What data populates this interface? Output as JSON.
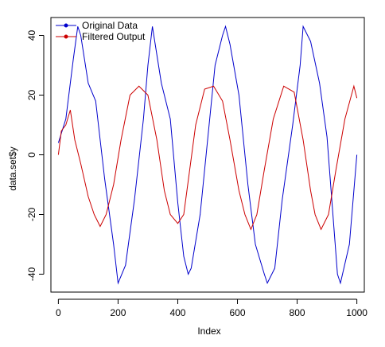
{
  "chart_data": {
    "type": "line",
    "title": "",
    "xlabel": "Index",
    "ylabel": "data.set$y",
    "xlim": [
      -25,
      1025
    ],
    "ylim": [
      -46,
      46
    ],
    "xticks": [
      0,
      200,
      400,
      600,
      800,
      1000
    ],
    "yticks": [
      -40,
      -20,
      0,
      20,
      40
    ],
    "xtick_labels": [
      "0",
      "200",
      "400",
      "600",
      "800",
      "1000"
    ],
    "ytick_labels": [
      "-40",
      "-20",
      "0",
      "20",
      "40"
    ],
    "grid": false,
    "legend_position": "top-left",
    "n_points": 1001,
    "series": [
      {
        "name": "Original Data",
        "color": "#0000CC",
        "marker": "filled-circle",
        "x_points": [
          0,
          25,
          50,
          65,
          75,
          100,
          125,
          155,
          185,
          200,
          225,
          255,
          285,
          300,
          315,
          345,
          375,
          400,
          420,
          435,
          445,
          475,
          505,
          525,
          550,
          560,
          575,
          605,
          635,
          660,
          690,
          700,
          725,
          750,
          785,
          810,
          820,
          845,
          875,
          900,
          935,
          945,
          975,
          1000
        ],
        "y_points": [
          4,
          12,
          32,
          43,
          40,
          24,
          18,
          -8,
          -30,
          -43,
          -37,
          -15,
          12,
          30,
          43,
          24,
          12,
          -16,
          -34,
          -40,
          -38,
          -20,
          10,
          30,
          40,
          43,
          37,
          20,
          -10,
          -30,
          -40,
          -43,
          -38,
          -15,
          10,
          30,
          43,
          38,
          24,
          6,
          -40,
          -43,
          -30,
          0
        ]
      },
      {
        "name": "Filtered Output",
        "color": "#CC0000",
        "marker": "filled-circle",
        "x_points": [
          0,
          10,
          25,
          40,
          55,
          75,
          100,
          120,
          140,
          160,
          185,
          210,
          240,
          270,
          300,
          330,
          355,
          375,
          400,
          420,
          440,
          460,
          490,
          520,
          550,
          575,
          605,
          625,
          645,
          665,
          690,
          720,
          755,
          790,
          820,
          845,
          860,
          880,
          905,
          930,
          960,
          990,
          1000
        ],
        "y_points": [
          0,
          8,
          10,
          15,
          5,
          -3,
          -14,
          -20,
          -24,
          -20,
          -10,
          5,
          20,
          23,
          20,
          5,
          -12,
          -20,
          -23,
          -20,
          -5,
          10,
          22,
          23,
          18,
          5,
          -12,
          -20,
          -25,
          -20,
          -5,
          12,
          23,
          21,
          5,
          -12,
          -20,
          -25,
          -20,
          -5,
          12,
          23,
          19
        ]
      }
    ]
  }
}
